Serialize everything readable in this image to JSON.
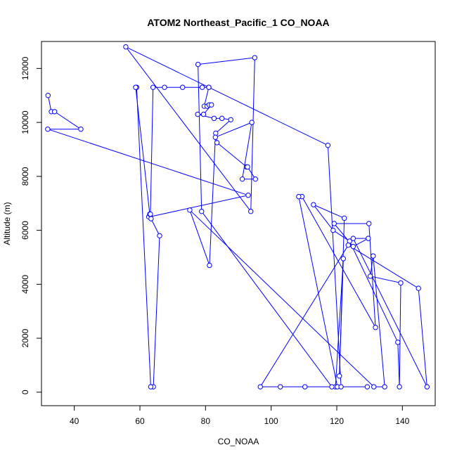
{
  "chart_data": {
    "type": "line",
    "title": "ATOM2 Northeast_Pacific_1 CO_NOAA",
    "xlabel": "CO_NOAA",
    "ylabel": "Altitude (m)",
    "xlim": [
      30,
      150
    ],
    "ylim": [
      -500,
      13000
    ],
    "xticks": [
      40,
      60,
      80,
      100,
      120,
      140
    ],
    "yticks": [
      0,
      2000,
      4000,
      6000,
      8000,
      10000,
      12000
    ],
    "markers": "open-circle",
    "line_color": "#0000ff",
    "grid": false,
    "series": [
      {
        "x": [
          32,
          33,
          34,
          42,
          31.9,
          93,
          63,
          62.7,
          63.4,
          66,
          64.1,
          63.3,
          59,
          58.7,
          63,
          63.2,
          64,
          67.5,
          73,
          79,
          81,
          81,
          79.6,
          80.5,
          81.1,
          81.8,
          79.4,
          77.6,
          82.6,
          85,
          87.7,
          83.1,
          83.5,
          92.5,
          92.8,
          95.2,
          91.2,
          94.1,
          83,
          81.2,
          75.2,
          131.3,
          134.6,
          131.1,
          130.2,
          139.5,
          139.1,
          138.6,
          123.9,
          118.9,
          112.9,
          122.3,
          120.8,
          122,
          119.6,
          110.3,
          102.8,
          96.7,
          123.5,
          144.9,
          147.5,
          125,
          129.6,
          125,
          119.2,
          129.8,
          131.8,
          109.4,
          108.4,
          120.2,
          121.3,
          117.3,
          55.7,
          93.8,
          95,
          77.7,
          78.8,
          118.5,
          129.3
        ],
        "y": [
          11000,
          10400,
          10400,
          9750,
          9750,
          7300,
          6500,
          6500,
          6430,
          5800,
          200,
          200,
          11300,
          11300,
          6600,
          6600,
          11300,
          11300,
          11300,
          11300,
          11300,
          11300,
          10600,
          10600,
          10650,
          10650,
          10300,
          10300,
          10150,
          10150,
          10100,
          9600,
          9250,
          8350,
          8350,
          7900,
          7900,
          10000,
          9450,
          4700,
          6750,
          200,
          200,
          5050,
          4300,
          4050,
          200,
          1850,
          5600,
          6000,
          6950,
          6450,
          600,
          4950,
          200,
          200,
          200,
          200,
          5450,
          3850,
          200,
          5700,
          5700,
          5400,
          6250,
          6250,
          2400,
          7250,
          7250,
          200,
          200,
          9150,
          12800,
          6700,
          12400,
          12150,
          6700,
          200,
          200
        ]
      }
    ]
  }
}
